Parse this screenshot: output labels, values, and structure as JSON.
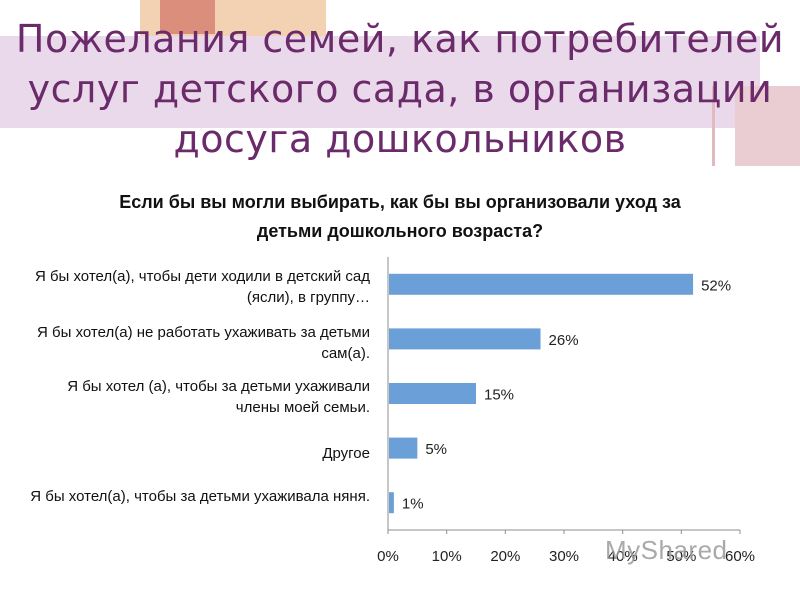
{
  "slide": {
    "title": "Пожелания семей, как потребителей услуг детского сада, в организации досуга дошкольников"
  },
  "colors": {
    "title": "#6b2a6a",
    "bar": "#6a9fd8",
    "band": "#ead9ea",
    "accent_orange": "#f0c9a6",
    "accent_red": "#d98a7a",
    "accent_pink": "#e8c9cc"
  },
  "chart_data": {
    "type": "bar",
    "orientation": "horizontal",
    "title": "Если бы вы могли выбирать, как бы вы организовали уход за детьми дошкольного возраста?",
    "categories": [
      "Я бы хотел(а), чтобы дети ходили в детский сад (ясли), в группу…",
      "Я бы хотел(а) не работать ухаживать за детьми сам(а).",
      "Я бы хотел (а), чтобы за детьми ухаживали члены моей семьи.",
      "Другое",
      "Я бы хотел(а), чтобы за детьми ухаживала няня."
    ],
    "values": [
      52,
      26,
      15,
      5,
      1
    ],
    "value_labels": [
      "52%",
      "26%",
      "15%",
      "5%",
      "1%"
    ],
    "xlim": [
      0,
      60
    ],
    "x_ticks": [
      "0%",
      "10%",
      "20%",
      "30%",
      "40%",
      "50%",
      "60%"
    ],
    "grid": false,
    "legend": false
  },
  "watermark": {
    "text": "MyShared"
  }
}
